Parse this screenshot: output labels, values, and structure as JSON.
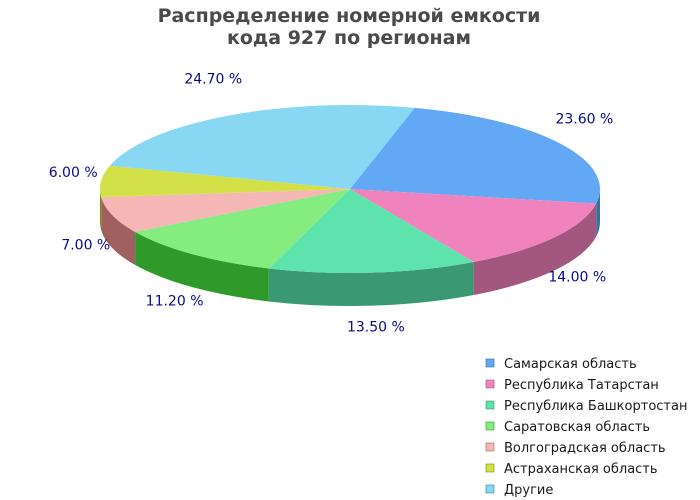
{
  "chart_data": {
    "type": "pie",
    "title_lines": [
      "Распределение номерной емкости",
      "кода 927 по регионам"
    ],
    "slices": [
      {
        "label": "Самарская область",
        "value": 23.6,
        "label_text": "23.60 %",
        "color": "#62a8f4",
        "side_color": "#3a6f9e"
      },
      {
        "label": "Республика Татарстан",
        "value": 14.0,
        "label_text": "14.00 %",
        "color": "#f083bd",
        "side_color": "#a3577f"
      },
      {
        "label": "Республика Башкортостан",
        "value": 13.5,
        "label_text": "13.50 %",
        "color": "#5ee3ad",
        "side_color": "#3a9872"
      },
      {
        "label": "Саратовская область",
        "value": 11.2,
        "label_text": "11.20 %",
        "color": "#85ec80",
        "side_color": "#2f9a2a"
      },
      {
        "label": "Волгоградская область",
        "value": 7.0,
        "label_text": "7.00 %",
        "color": "#f5b6b6",
        "side_color": "#a06060"
      },
      {
        "label": "Астраханская область",
        "value": 6.0,
        "label_text": "6.00 %",
        "color": "#d4e047",
        "side_color": "#7a8a00"
      },
      {
        "label": "Другие",
        "value": 24.7,
        "label_text": "24.70 %",
        "color": "#88d8f3",
        "side_color": "#2e7e98"
      }
    ],
    "legend_position": "bottom-right"
  }
}
